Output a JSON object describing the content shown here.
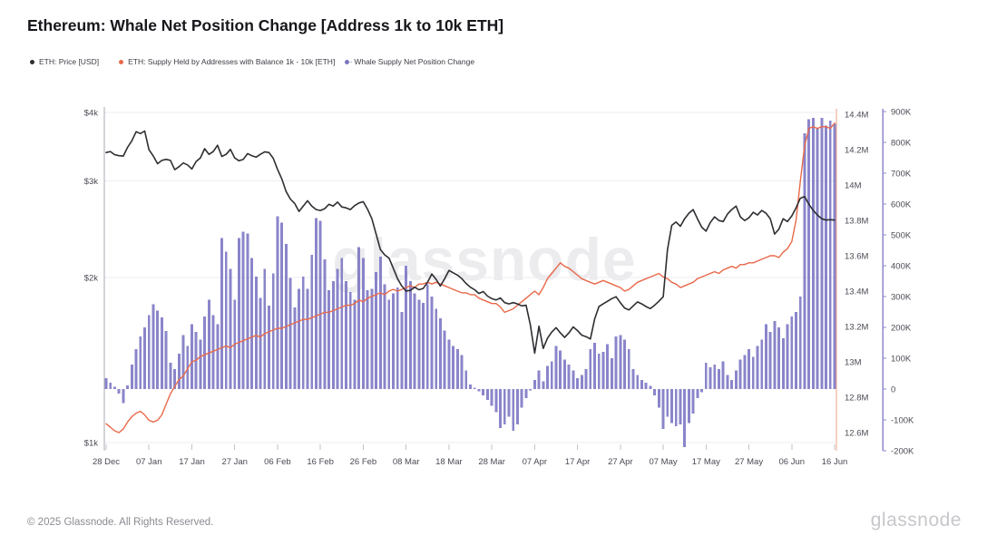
{
  "header": {
    "title": "Ethereum: Whale Net Position Change [Address 1k to 10k ETH]"
  },
  "legend": {
    "separator": "-",
    "items": [
      {
        "label": "ETH: Price [USD]",
        "color": "#2e2e33"
      },
      {
        "label": "ETH: Supply Held by Addresses with Balance 1k - 10k [ETH]",
        "color": "#e8694a"
      },
      {
        "label": "Whale Supply Net Position Change",
        "color": "#7b75c3"
      }
    ]
  },
  "watermark": "glassnode",
  "footer": {
    "copyright": "© 2025 Glassnode. All Rights Reserved.",
    "brand": "glassnode"
  },
  "chart_data": {
    "type": "mixed",
    "title": "Ethereum: Whale Net Position Change [Address 1k to 10k ETH]",
    "grid": "horizontal-only",
    "x_start_label": "28 Dec",
    "x_tick_interval_days": 10,
    "x_tick_labels": [
      "28 Dec",
      "07 Jan",
      "17 Jan",
      "27 Jan",
      "06 Feb",
      "16 Feb",
      "26 Feb",
      "08 Mar",
      "18 Mar",
      "28 Mar",
      "07 Apr",
      "17 Apr",
      "27 Apr",
      "07 May",
      "17 May",
      "27 May",
      "06 Jun",
      "16 Jun"
    ],
    "price_axis": {
      "side": "left",
      "scale": "log",
      "color": "#2e2e33",
      "tick_labels": [
        "$4k",
        "$3k",
        "$2k",
        "$1k"
      ],
      "tick_values": [
        4000,
        3000,
        2000,
        1000
      ],
      "range": [
        1000,
        4000
      ]
    },
    "supply_axis": {
      "side": "right",
      "scale": "linear",
      "color": "#e8694a",
      "tick_labels": [
        "14.4M",
        "14.2M",
        "14M",
        "13.8M",
        "13.6M",
        "13.4M",
        "13.2M",
        "13M",
        "12.8M",
        "12.6M"
      ],
      "tick_values": [
        14.4,
        14.2,
        14.0,
        13.8,
        13.6,
        13.4,
        13.2,
        13.0,
        12.8,
        12.6
      ],
      "range": [
        12.6,
        14.4
      ]
    },
    "net_axis": {
      "side": "right-outer",
      "scale": "linear",
      "color": "#7b75c3",
      "tick_labels": [
        "900K",
        "800K",
        "700K",
        "600K",
        "500K",
        "400K",
        "300K",
        "200K",
        "100K",
        "0",
        "-100K",
        "-200K"
      ],
      "tick_values": [
        900,
        800,
        700,
        600,
        500,
        400,
        300,
        200,
        100,
        0,
        -100,
        -200
      ],
      "range": [
        -200,
        900
      ]
    },
    "series": [
      {
        "name": "ETH: Price [USD]",
        "type": "line",
        "axis": "price",
        "color": "#2e2e33",
        "unit": "USD",
        "values": [
          3380,
          3395,
          3350,
          3335,
          3330,
          3455,
          3550,
          3690,
          3660,
          3700,
          3420,
          3330,
          3225,
          3270,
          3285,
          3270,
          3145,
          3185,
          3235,
          3210,
          3155,
          3255,
          3305,
          3435,
          3355,
          3395,
          3485,
          3325,
          3355,
          3425,
          3305,
          3265,
          3285,
          3365,
          3335,
          3315,
          3355,
          3390,
          3380,
          3300,
          3150,
          3025,
          2870,
          2780,
          2730,
          2640,
          2700,
          2760,
          2700,
          2660,
          2650,
          2670,
          2720,
          2700,
          2745,
          2690,
          2680,
          2660,
          2705,
          2735,
          2750,
          2665,
          2560,
          2400,
          2250,
          2200,
          2170,
          2080,
          1990,
          1930,
          1890,
          1895,
          1920,
          1900,
          1910,
          1960,
          2030,
          1985,
          1930,
          1990,
          2060,
          2040,
          2020,
          1990,
          1950,
          1920,
          1900,
          1870,
          1885,
          1850,
          1830,
          1820,
          1835,
          1800,
          1790,
          1800,
          1790,
          1775,
          1780,
          1640,
          1455,
          1630,
          1485,
          1550,
          1590,
          1620,
          1585,
          1555,
          1585,
          1625,
          1600,
          1570,
          1560,
          1545,
          1680,
          1770,
          1790,
          1810,
          1830,
          1845,
          1800,
          1760,
          1745,
          1775,
          1805,
          1790,
          1770,
          1755,
          1780,
          1810,
          1845,
          2250,
          2490,
          2525,
          2480,
          2560,
          2620,
          2660,
          2560,
          2470,
          2430,
          2520,
          2580,
          2540,
          2530,
          2610,
          2660,
          2700,
          2580,
          2540,
          2570,
          2630,
          2600,
          2650,
          2620,
          2560,
          2400,
          2450,
          2560,
          2530,
          2590,
          2680,
          2790,
          2810,
          2720,
          2650,
          2600,
          2560,
          2545,
          2550,
          2545
        ]
      },
      {
        "name": "ETH: Supply Held by Addresses with Balance 1k - 10k [ETH]",
        "type": "line",
        "axis": "supply",
        "color": "#e8694a",
        "unit": "M ETH",
        "values": [
          12.65,
          12.63,
          12.61,
          12.6,
          12.62,
          12.66,
          12.69,
          12.71,
          12.72,
          12.7,
          12.67,
          12.66,
          12.67,
          12.7,
          12.76,
          12.82,
          12.86,
          12.9,
          12.92,
          12.96,
          13.0,
          13.01,
          13.03,
          13.04,
          13.05,
          13.06,
          13.07,
          13.08,
          13.09,
          13.08,
          13.1,
          13.11,
          13.12,
          13.13,
          13.14,
          13.15,
          13.14,
          13.16,
          13.17,
          13.18,
          13.19,
          13.19,
          13.2,
          13.21,
          13.22,
          13.23,
          13.24,
          13.24,
          13.25,
          13.26,
          13.27,
          13.28,
          13.28,
          13.29,
          13.3,
          13.31,
          13.32,
          13.32,
          13.33,
          13.35,
          13.34,
          13.36,
          13.37,
          13.38,
          13.39,
          13.38,
          13.4,
          13.41,
          13.4,
          13.41,
          13.42,
          13.43,
          13.42,
          13.44,
          13.44,
          13.45,
          13.44,
          13.45,
          13.44,
          13.43,
          13.42,
          13.41,
          13.4,
          13.39,
          13.39,
          13.38,
          13.38,
          13.36,
          13.35,
          13.34,
          13.33,
          13.33,
          13.31,
          13.28,
          13.29,
          13.3,
          13.32,
          13.34,
          13.36,
          13.38,
          13.4,
          13.38,
          13.42,
          13.47,
          13.5,
          13.53,
          13.56,
          13.54,
          13.53,
          13.51,
          13.49,
          13.47,
          13.46,
          13.45,
          13.44,
          13.45,
          13.46,
          13.45,
          13.44,
          13.43,
          13.42,
          13.4,
          13.41,
          13.43,
          13.45,
          13.46,
          13.47,
          13.48,
          13.49,
          13.5,
          13.48,
          13.47,
          13.45,
          13.44,
          13.42,
          13.43,
          13.44,
          13.45,
          13.47,
          13.48,
          13.49,
          13.5,
          13.51,
          13.5,
          13.52,
          13.53,
          13.54,
          13.53,
          13.55,
          13.55,
          13.56,
          13.56,
          13.57,
          13.58,
          13.59,
          13.6,
          13.6,
          13.59,
          13.62,
          13.64,
          13.68,
          13.8,
          14.02,
          14.22,
          14.32,
          14.33,
          14.32,
          14.33,
          14.33,
          14.32,
          14.35
        ]
      },
      {
        "name": "Whale Supply Net Position Change",
        "type": "bar",
        "axis": "net",
        "color": "#7b75c3",
        "unit": "K ETH",
        "values": [
          35,
          20,
          8,
          -15,
          -45,
          12,
          80,
          130,
          170,
          200,
          240,
          275,
          255,
          232,
          188,
          85,
          65,
          115,
          175,
          140,
          210,
          185,
          160,
          235,
          290,
          240,
          210,
          490,
          445,
          390,
          290,
          490,
          510,
          505,
          425,
          365,
          295,
          390,
          270,
          375,
          560,
          540,
          470,
          360,
          265,
          325,
          365,
          325,
          435,
          555,
          545,
          420,
          320,
          350,
          390,
          425,
          350,
          315,
          290,
          460,
          425,
          320,
          325,
          380,
          430,
          340,
          290,
          310,
          330,
          250,
          400,
          350,
          310,
          290,
          280,
          340,
          300,
          260,
          230,
          190,
          160,
          140,
          130,
          110,
          60,
          15,
          5,
          -8,
          -20,
          -35,
          -55,
          -75,
          -126,
          -115,
          -90,
          -135,
          -115,
          -60,
          -30,
          -5,
          30,
          60,
          25,
          75,
          90,
          140,
          125,
          95,
          80,
          60,
          35,
          45,
          65,
          130,
          150,
          115,
          120,
          145,
          100,
          170,
          175,
          160,
          130,
          65,
          45,
          30,
          20,
          10,
          -20,
          -60,
          -130,
          -90,
          -110,
          -120,
          -115,
          -188,
          -110,
          -80,
          -30,
          -10,
          85,
          70,
          80,
          65,
          90,
          45,
          30,
          60,
          95,
          110,
          130,
          105,
          140,
          160,
          210,
          185,
          220,
          200,
          165,
          210,
          235,
          250,
          300,
          830,
          875,
          880,
          845,
          880,
          855,
          870,
          860
        ]
      }
    ]
  }
}
